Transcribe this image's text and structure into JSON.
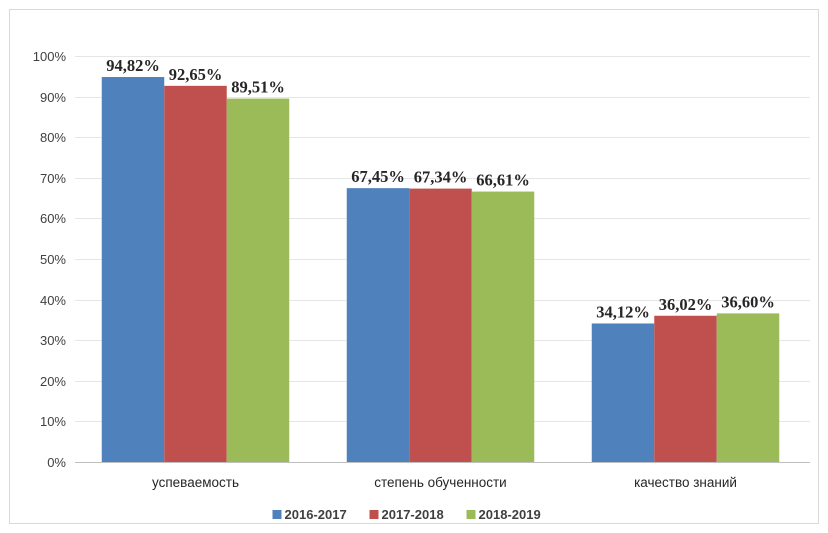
{
  "chart_data": {
    "type": "bar",
    "title": "",
    "xlabel": "",
    "ylabel": "",
    "categories": [
      "успеваемость",
      "степень обученности",
      "качество знаний"
    ],
    "series": [
      {
        "name": "2016-2017",
        "color": "#4f81bd",
        "values": [
          94.82,
          67.45,
          34.12
        ],
        "labels": [
          "94,82%",
          "67,45%",
          "34,12%"
        ]
      },
      {
        "name": "2017-2018",
        "color": "#c0504d",
        "values": [
          92.65,
          67.34,
          36.02
        ],
        "labels": [
          "92,65%",
          "67,34%",
          "36,02%"
        ]
      },
      {
        "name": "2018-2019",
        "color": "#9bbb59",
        "values": [
          89.51,
          66.61,
          36.6
        ],
        "labels": [
          "89,51%",
          "66,61%",
          "36,60%"
        ]
      }
    ],
    "ylim": [
      0,
      100
    ],
    "yticks": [
      0,
      10,
      20,
      30,
      40,
      50,
      60,
      70,
      80,
      90,
      100
    ],
    "ytick_labels": [
      "0%",
      "10%",
      "20%",
      "30%",
      "40%",
      "50%",
      "60%",
      "70%",
      "80%",
      "90%",
      "100%"
    ],
    "grid": true,
    "legend_position": "bottom"
  }
}
